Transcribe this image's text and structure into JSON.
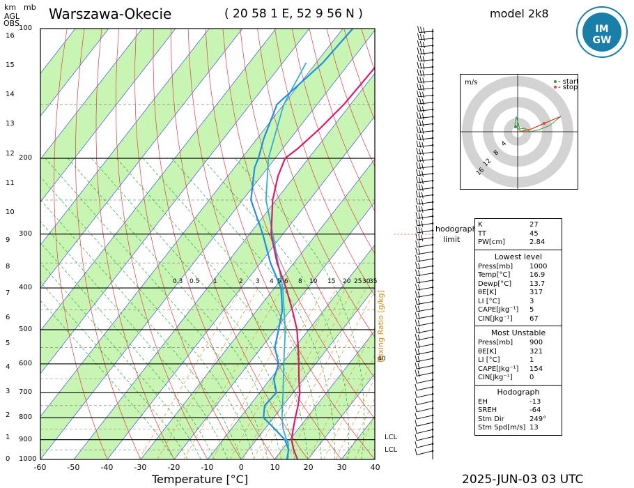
{
  "header": {
    "station": "Warszawa-Okecie",
    "coords": "( 20 58 1 E, 52 9 56 N )",
    "model": "model 2k8",
    "date": "2025-JUN-03   03 UTC",
    "km_label": "km",
    "mb_label": "mb",
    "agl_label": "AGL",
    "obs_label": "OBS",
    "logo_text": "IMGW"
  },
  "axes": {
    "xlabel": "Temperature [°C]",
    "x_ticks": [
      "-60",
      "-50",
      "-40",
      "-30",
      "-20",
      "-10",
      "0",
      "10",
      "20",
      "30",
      "40"
    ],
    "p_ticks": [
      "100",
      "200",
      "300",
      "400",
      "500",
      "600",
      "700",
      "800",
      "900",
      "1000"
    ],
    "km_ticks": [
      "0",
      "1",
      "2",
      "3",
      "4",
      "5",
      "6",
      "7",
      "8",
      "9",
      "10",
      "11",
      "12",
      "13",
      "14",
      "15",
      "16"
    ],
    "mixing_ratio_title": "Mixing Ratio [g/kg]",
    "mixing_ratio_labels": [
      "0.3",
      "0.5",
      "1",
      "2",
      "3",
      "4",
      "5",
      "6",
      "8",
      "10",
      "15",
      "20",
      "25",
      "30",
      "35"
    ],
    "mixing_ratio_40": "40",
    "lcl_label": "LCL"
  },
  "chart_data": {
    "type": "skew-t",
    "temperature": {
      "p": [
        1000,
        950,
        900,
        850,
        800,
        750,
        700,
        650,
        600,
        550,
        500,
        450,
        400,
        350,
        300,
        250,
        220,
        200,
        190,
        170,
        150,
        130,
        110,
        100
      ],
      "T": [
        16.9,
        13.5,
        10.5,
        8.5,
        6.5,
        4.5,
        2.0,
        -1.5,
        -5.0,
        -9.0,
        -13.5,
        -19.5,
        -26.5,
        -35.0,
        -43.5,
        -51.0,
        -55.0,
        -57.0,
        -55.5,
        -53.5,
        -52.0,
        -51.5,
        -51.0,
        -49.5
      ]
    },
    "dewpoint": {
      "p": [
        1000,
        950,
        900,
        850,
        800,
        750,
        700,
        650,
        600,
        550,
        500,
        450,
        400,
        350,
        300,
        250,
        210,
        200,
        180,
        150,
        120,
        100
      ],
      "Td": [
        13.7,
        12.0,
        8.5,
        3.0,
        -3.0,
        -5.5,
        -5.0,
        -9.0,
        -11.0,
        -16.0,
        -19.0,
        -22.5,
        -28.0,
        -37.0,
        -46.0,
        -57.5,
        -64.0,
        -65.0,
        -68.0,
        -72.0,
        -68.0,
        -67.0
      ]
    },
    "parcel": {
      "p": [
        1000,
        920,
        900,
        850,
        800,
        700,
        600,
        500,
        400,
        300,
        250,
        200,
        150,
        120
      ],
      "T": [
        14.0,
        10.5,
        9.0,
        5.5,
        2.5,
        -3.0,
        -9.5,
        -17.0,
        -27.5,
        -43.0,
        -53.0,
        -62.0,
        -70.0,
        -73.0
      ]
    },
    "lcl_pressures": [
      920,
      970
    ],
    "x_range": [
      -60,
      40
    ],
    "p_range": [
      1000,
      100
    ]
  },
  "hodograph": {
    "unit": "m/s",
    "legend_start": "- start",
    "legend_stop": "- stop",
    "rings": [
      "4",
      "8",
      "12",
      "16"
    ],
    "note_line1": "hodograph",
    "note_line2": "limit"
  },
  "params": {
    "indices": [
      {
        "k": "K",
        "v": "27"
      },
      {
        "k": "TT",
        "v": "45"
      },
      {
        "k": "PW[cm]",
        "v": "2.84"
      }
    ],
    "lowest_title": "Lowest level",
    "lowest": [
      {
        "k": "Press[mb]",
        "v": "1000"
      },
      {
        "k": "Temp[°C]",
        "v": "16.9"
      },
      {
        "k": "Dewp[°C]",
        "v": "13.7"
      },
      {
        "k": "θE[K]",
        "v": "317"
      },
      {
        "k": "LI [°C]",
        "v": "3"
      },
      {
        "k": "CAPE[Jkg⁻¹]",
        "v": "5"
      },
      {
        "k": "CIN[Jkg⁻¹]",
        "v": "67"
      }
    ],
    "mu_title": "Most Unstable",
    "mu": [
      {
        "k": "Press[mb]",
        "v": "900"
      },
      {
        "k": "θE[K]",
        "v": "321"
      },
      {
        "k": "LI [°C]",
        "v": "1"
      },
      {
        "k": "CAPE[Jkg⁻¹]",
        "v": "154"
      },
      {
        "k": "CIN[Jkg⁻¹]",
        "v": "0"
      }
    ],
    "hodo_title": "Hodograph",
    "hodo": [
      {
        "k": "EH",
        "v": "-13"
      },
      {
        "k": "SREH",
        "v": "-64"
      },
      {
        "k": "Stm Dir",
        "v": "249°"
      },
      {
        "k": "Stm Spd[m/s]",
        "v": "13"
      }
    ]
  }
}
